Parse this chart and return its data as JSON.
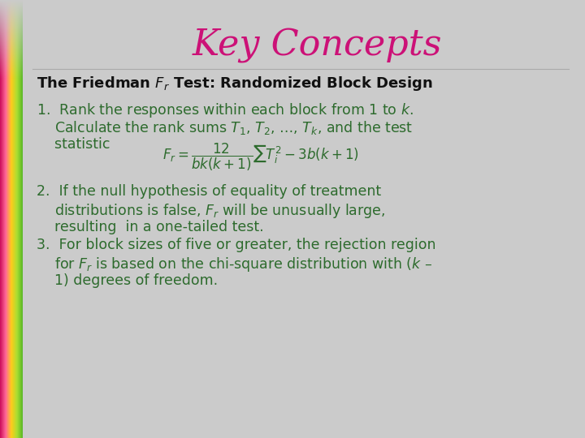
{
  "title": "Key Concepts",
  "title_color": "#CC1177",
  "title_fontsize": 32,
  "background_color": "#CBCBCB",
  "header_color": "#111111",
  "header_fontsize": 13,
  "body_color": "#2D6B2D",
  "body_fontsize": 12.5,
  "strip_colors": [
    "#CC1177",
    "#FF6699",
    "#FFCC00",
    "#AADD44",
    "#66BB33"
  ],
  "item1_l1": "1.  Rank the responses within each block from 1 to $k$.",
  "item1_l2": "    Calculate the rank sums $T_1$, $T_2$, …, $T_k$, and the test",
  "item1_l3": "    statistic",
  "item2_l1": "2.  If the null hypothesis of equality of treatment",
  "item2_l2": "    distributions is false, $F_r$ will be unusually large,",
  "item2_l3": "    resulting  in a one-tailed test.",
  "item3_l1": "3.  For block sizes of five or greater, the rejection region",
  "item3_l2": "    for $F_r$ is based on the chi-square distribution with ($k$ –",
  "item3_l3": "    1) degrees of freedom.",
  "formula": "$F_r = \\dfrac{12}{bk(k+1)}\\sum T_i^2 - 3b(k+1)$"
}
